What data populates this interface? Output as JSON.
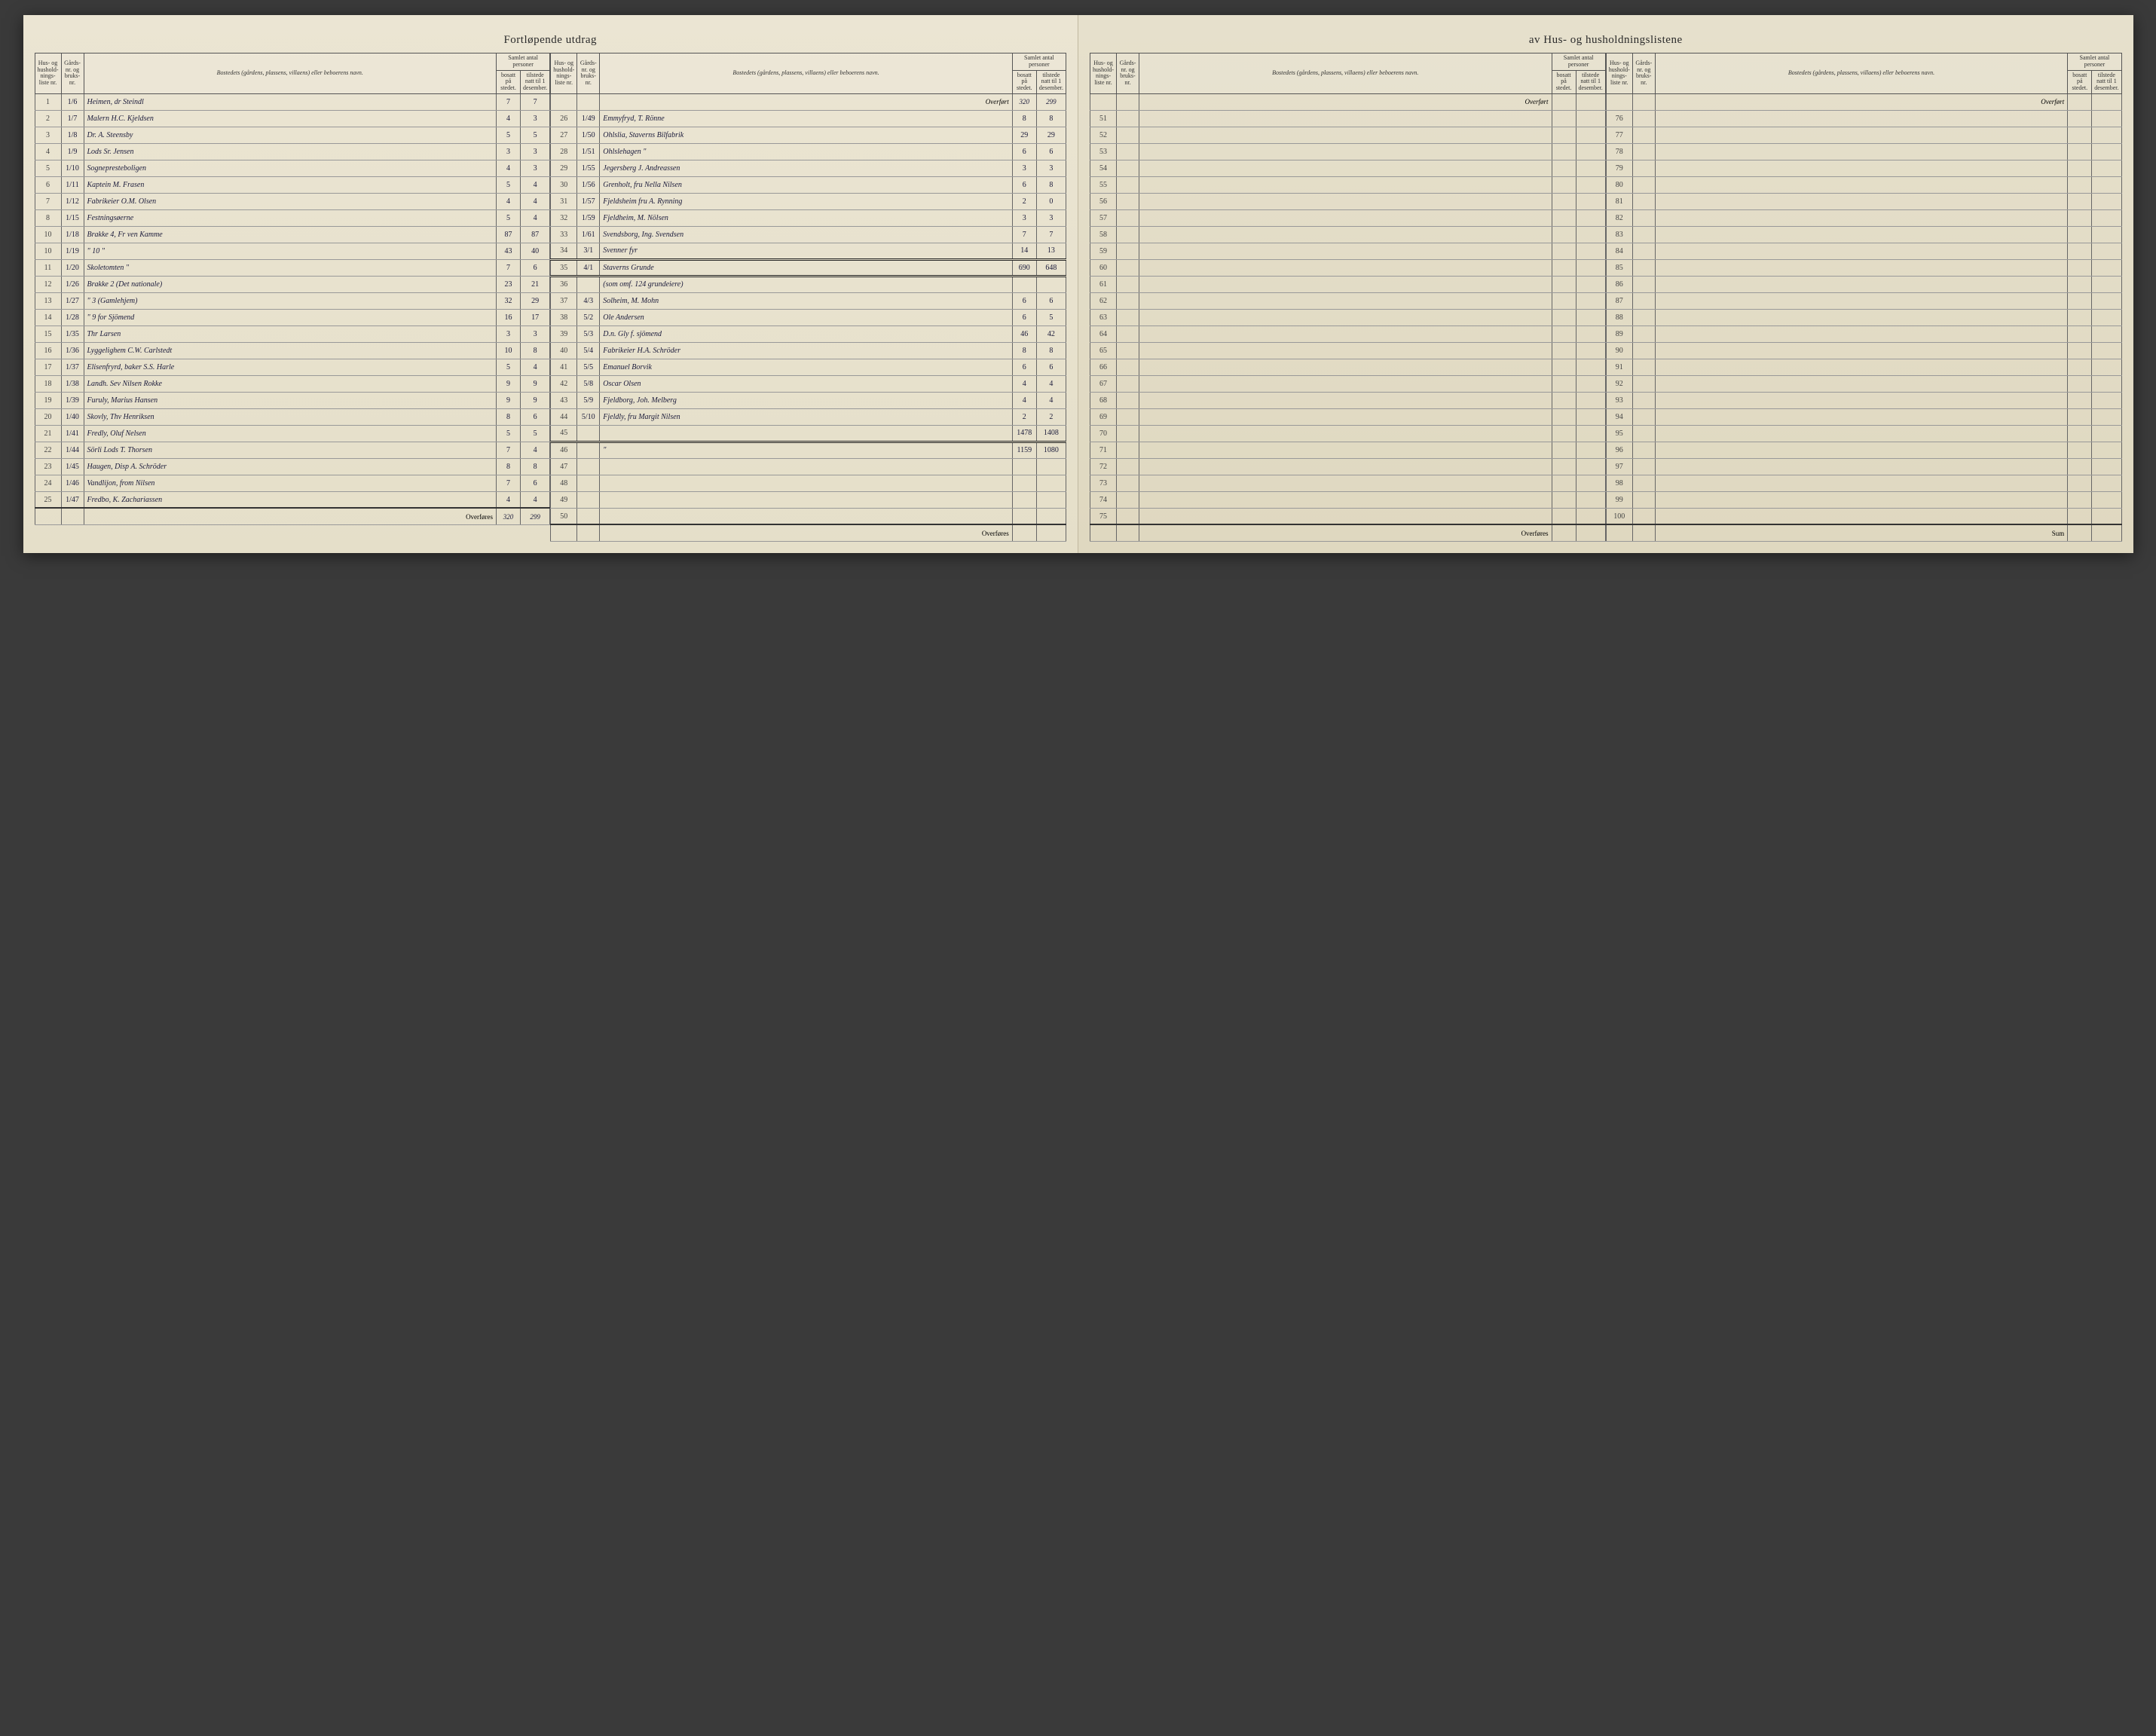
{
  "title": {
    "left": "Fortløpende utdrag",
    "right": "av Hus- og husholdningslistene"
  },
  "headers": {
    "liste": "Hus- og hushold-nings-liste nr.",
    "gard": "Gårds-nr. og bruks-nr.",
    "bosted": "Bostedets (gårdens, plassens, villaens) eller beboerens navn.",
    "samlet": "Samlet antal personer",
    "bosatt": "bosatt på stedet.",
    "tilstede": "tilstede natt til 1 desember."
  },
  "labels": {
    "overfort": "Overført",
    "overfores": "Overføres",
    "sum": "Sum"
  },
  "colA": {
    "rows": [
      {
        "n": "1",
        "g": "1/6",
        "name": "Heimen, dr Steindl",
        "b": "7",
        "t": "7"
      },
      {
        "n": "2",
        "g": "1/7",
        "name": "Malern H.C. Kjeldsen",
        "b": "4",
        "t": "3"
      },
      {
        "n": "3",
        "g": "1/8",
        "name": "Dr. A. Steensby",
        "b": "5",
        "t": "5"
      },
      {
        "n": "4",
        "g": "1/9",
        "name": "Lods Sr. Jensen",
        "b": "3",
        "t": "3"
      },
      {
        "n": "5",
        "g": "1/10",
        "name": "Sognepresteboligen",
        "b": "4",
        "t": "3"
      },
      {
        "n": "6",
        "g": "1/11",
        "name": "Kaptein M. Frasen",
        "b": "5",
        "t": "4"
      },
      {
        "n": "7",
        "g": "1/12",
        "name": "Fabrikeier O.M. Olsen",
        "b": "4",
        "t": "4"
      },
      {
        "n": "8",
        "g": "1/15",
        "name": "Festningsøerne",
        "b": "5",
        "t": "4"
      },
      {
        "n": "10",
        "g": "1/18",
        "name": "Brakke 4, Fr ven Kamme",
        "b": "87",
        "t": "87"
      },
      {
        "n": "10",
        "g": "1/19",
        "name": "\" 10 \"",
        "b": "43",
        "t": "40"
      },
      {
        "n": "11",
        "g": "1/20",
        "name": "Skoletomten \"",
        "b": "7",
        "t": "6"
      },
      {
        "n": "12",
        "g": "1/26",
        "name": "Brakke 2 (Det nationale)",
        "b": "23",
        "t": "21"
      },
      {
        "n": "13",
        "g": "1/27",
        "name": "\" 3 (Gamlehjem)",
        "b": "32",
        "t": "29"
      },
      {
        "n": "14",
        "g": "1/28",
        "name": "\" 9 for Sjömend",
        "b": "16",
        "t": "17"
      },
      {
        "n": "15",
        "g": "1/35",
        "name": "Thr Larsen",
        "b": "3",
        "t": "3"
      },
      {
        "n": "16",
        "g": "1/36",
        "name": "Lyggelighem C.W. Carlstedt",
        "b": "10",
        "t": "8"
      },
      {
        "n": "17",
        "g": "1/37",
        "name": "Elisenfryrd, baker S.S. Harle",
        "b": "5",
        "t": "4"
      },
      {
        "n": "18",
        "g": "1/38",
        "name": "Landh. Sev Nilsen Rokke",
        "b": "9",
        "t": "9"
      },
      {
        "n": "19",
        "g": "1/39",
        "name": "Furuly, Marius Hansen",
        "b": "9",
        "t": "9"
      },
      {
        "n": "20",
        "g": "1/40",
        "name": "Skovly, Thv Henriksen",
        "b": "8",
        "t": "6"
      },
      {
        "n": "21",
        "g": "1/41",
        "name": "Fredly, Oluf Nelsen",
        "b": "5",
        "t": "5"
      },
      {
        "n": "22",
        "g": "1/44",
        "name": "Sörli Lods T. Thorsen",
        "b": "7",
        "t": "4"
      },
      {
        "n": "23",
        "g": "1/45",
        "name": "Haugen, Disp A. Schröder",
        "b": "8",
        "t": "8"
      },
      {
        "n": "24",
        "g": "1/46",
        "name": "Vandlijon, from Nilsen",
        "b": "7",
        "t": "6"
      },
      {
        "n": "25",
        "g": "1/47",
        "name": "Fredbo, K. Zachariassen",
        "b": "4",
        "t": "4"
      }
    ],
    "footer": {
      "b": "320",
      "t": "299"
    }
  },
  "colB": {
    "overfort": {
      "b": "320",
      "t": "299"
    },
    "rows": [
      {
        "n": "26",
        "g": "1/49",
        "name": "Emmyfryd, T. Rönne",
        "b": "8",
        "t": "8"
      },
      {
        "n": "27",
        "g": "1/50",
        "name": "Ohlslia, Staverns Bilfabrik",
        "b": "29",
        "t": "29"
      },
      {
        "n": "28",
        "g": "1/51",
        "name": "Ohlslehagen \"",
        "b": "6",
        "t": "6"
      },
      {
        "n": "29",
        "g": "1/55",
        "name": "Jegersberg J. Andreassen",
        "b": "3",
        "t": "3"
      },
      {
        "n": "30",
        "g": "1/56",
        "name": "Grenholt, fru Nella Nilsen",
        "b": "6",
        "t": "8"
      },
      {
        "n": "31",
        "g": "1/57",
        "name": "Fjeldsheim fru A. Rynning",
        "b": "2",
        "t": "0"
      },
      {
        "n": "32",
        "g": "1/59",
        "name": "Fjeldheim, M. Nölsen",
        "b": "3",
        "t": "3"
      },
      {
        "n": "33",
        "g": "1/61",
        "name": "Svendsborg, Ing. Svendsen",
        "b": "7",
        "t": "7"
      },
      {
        "n": "34",
        "g": "3/1",
        "name": "Svenner fyr",
        "b": "14",
        "t": "13"
      },
      {
        "n": "35",
        "g": "4/1",
        "name": "Staverns Grunde",
        "b": "690",
        "t": "648"
      },
      {
        "n": "36",
        "g": "",
        "name": "(som omf. 124 grundeiere)",
        "b": "",
        "t": ""
      },
      {
        "n": "37",
        "g": "4/3",
        "name": "Solheim, M. Mohn",
        "b": "6",
        "t": "6"
      },
      {
        "n": "38",
        "g": "5/2",
        "name": "Ole Andersen",
        "b": "6",
        "t": "5"
      },
      {
        "n": "39",
        "g": "5/3",
        "name": "D.n. Gly f. sjömend",
        "b": "46",
        "t": "42"
      },
      {
        "n": "40",
        "g": "5/4",
        "name": "Fabrikeier H.A. Schröder",
        "b": "8",
        "t": "8"
      },
      {
        "n": "41",
        "g": "5/5",
        "name": "Emanuel Borvik",
        "b": "6",
        "t": "6"
      },
      {
        "n": "42",
        "g": "5/8",
        "name": "Oscar Olsen",
        "b": "4",
        "t": "4"
      },
      {
        "n": "43",
        "g": "5/9",
        "name": "Fjeldborg, Joh. Melberg",
        "b": "4",
        "t": "4"
      },
      {
        "n": "44",
        "g": "5/10",
        "name": "Fjeldly, fru Margit Nilsen",
        "b": "2",
        "t": "2"
      },
      {
        "n": "45",
        "g": "",
        "name": "",
        "b": "1478",
        "t": "1408"
      },
      {
        "n": "46",
        "g": "",
        "name": "\"",
        "b": "1159",
        "t": "1080"
      },
      {
        "n": "47",
        "g": "",
        "name": "",
        "b": "",
        "t": ""
      },
      {
        "n": "48",
        "g": "",
        "name": "",
        "b": "",
        "t": ""
      },
      {
        "n": "49",
        "g": "",
        "name": "",
        "b": "",
        "t": ""
      },
      {
        "n": "50",
        "g": "",
        "name": "",
        "b": "",
        "t": ""
      }
    ]
  },
  "colC": {
    "start": 51,
    "end": 75
  },
  "colD": {
    "start": 76,
    "end": 100
  },
  "colors": {
    "paper": "#e8e2d0",
    "ink": "#1a1a3a",
    "rule": "#555555",
    "faint_rule": "#999999"
  }
}
